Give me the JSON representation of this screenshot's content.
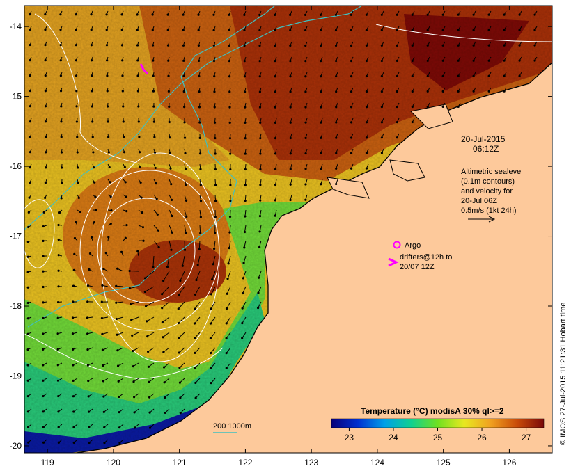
{
  "chart_data": {
    "type": "heatmap",
    "title": "",
    "x_ticks": [
      "119",
      "120",
      "121",
      "122",
      "123",
      "124",
      "125",
      "126"
    ],
    "y_ticks": [
      "-14",
      "-15",
      "-16",
      "-17",
      "-18",
      "-19",
      "-20"
    ],
    "xlim": [
      118.65,
      126.65
    ],
    "ylim": [
      -20.1,
      -13.7
    ],
    "colorbar": {
      "title": "Temperature (°C) modisA 30% ql>=2",
      "ticks": [
        "23",
        "24",
        "25",
        "26",
        "27"
      ],
      "range": [
        22.6,
        27.4
      ],
      "colors": [
        "#08007a",
        "#0030d0",
        "#00a0e8",
        "#10d090",
        "#70e020",
        "#e8e820",
        "#f0a020",
        "#c84a08",
        "#7a0808"
      ]
    },
    "annotations": {
      "date": "20-Jul-2015",
      "time": "06:12Z",
      "altimetry_lines": [
        "Altimetric sealevel",
        "(0.1m contours)",
        "and velocity for",
        "20-Jul 06Z",
        "0.5m/s (1kt 24h)"
      ],
      "argo_label": "Argo",
      "drifter_lines": [
        "drifters@12h to",
        "20/07 12Z"
      ],
      "depth_legend": "200  1000m",
      "stamp": "© IMOS 27-Jul-2015 11:21:31 Hobart time"
    },
    "features": {
      "eddy_center_lon": 120.5,
      "eddy_center_lat": -17.3,
      "argo_position": [
        124.3,
        -17.05
      ],
      "land_color": "#fdc99b",
      "contour_color": "#ffffff",
      "isobath_color": "#40c0c0",
      "drifter_color": "#ff00ff"
    }
  }
}
